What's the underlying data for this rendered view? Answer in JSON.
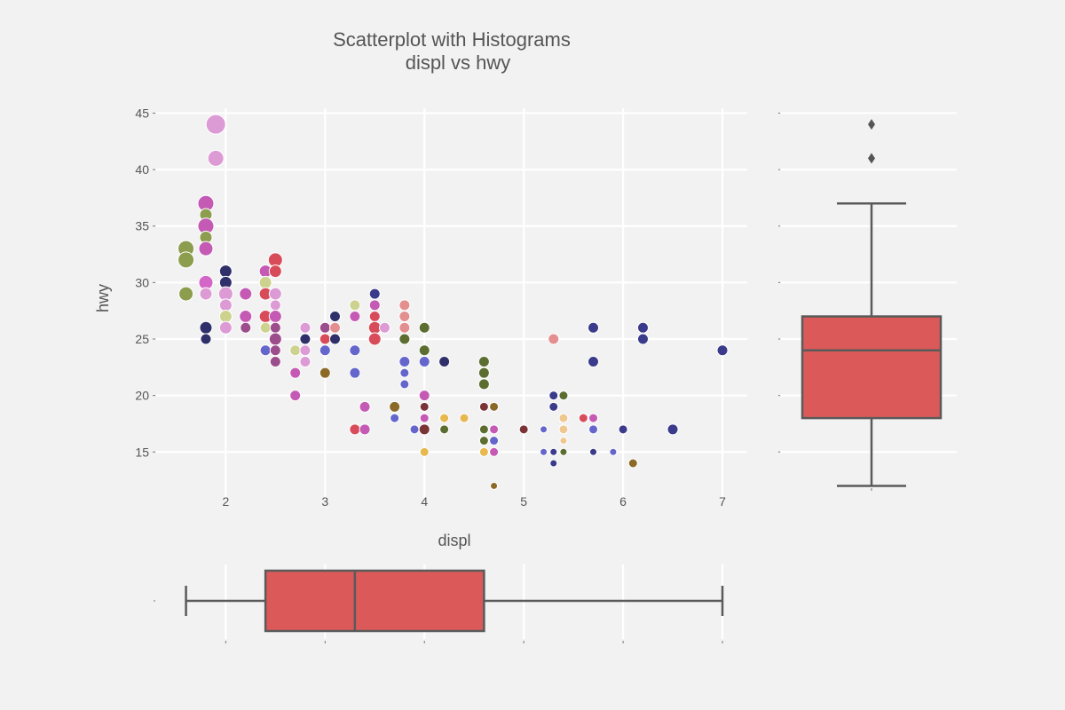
{
  "colors": {
    "background": "#f2f2f2",
    "grid": "#ffffff",
    "box_fill": "#db5a59",
    "box_edge": "#5a5a5a",
    "text": "#555555"
  },
  "chart_data": [
    {
      "type": "scatter",
      "title": "Scatterplot with Histograms",
      "subtitle": "displ vs hwy",
      "xlabel": "displ",
      "ylabel": "hwy",
      "xlim": [
        1.3,
        7.25
      ],
      "ylim": [
        10.7,
        45.9
      ],
      "xticks": [
        "2",
        "3",
        "4",
        "5",
        "6",
        "7"
      ],
      "yticks": [
        "15",
        "20",
        "25",
        "30",
        "35",
        "40",
        "45"
      ],
      "grid": true,
      "points": [
        {
          "x": 1.9,
          "y": 44,
          "s": 11,
          "c": "#dd9bd6"
        },
        {
          "x": 1.9,
          "y": 41,
          "s": 9,
          "c": "#dd9bd6"
        },
        {
          "x": 1.8,
          "y": 37,
          "s": 9,
          "c": "#c45ab4"
        },
        {
          "x": 1.8,
          "y": 36,
          "s": 7,
          "c": "#8c9d4e"
        },
        {
          "x": 1.8,
          "y": 35,
          "s": 9,
          "c": "#c45ab4"
        },
        {
          "x": 1.8,
          "y": 34,
          "s": 7,
          "c": "#8c9d4e"
        },
        {
          "x": 1.8,
          "y": 33,
          "s": 8,
          "c": "#c45ab4"
        },
        {
          "x": 1.6,
          "y": 33,
          "s": 9,
          "c": "#8c9d4e"
        },
        {
          "x": 1.6,
          "y": 32,
          "s": 9,
          "c": "#8c9d4e"
        },
        {
          "x": 1.6,
          "y": 29,
          "s": 8,
          "c": "#8c9d4e"
        },
        {
          "x": 1.8,
          "y": 30,
          "s": 8,
          "c": "#d366c6"
        },
        {
          "x": 1.8,
          "y": 29,
          "s": 7,
          "c": "#dd9bd6"
        },
        {
          "x": 1.8,
          "y": 26,
          "s": 7,
          "c": "#2f3069"
        },
        {
          "x": 1.8,
          "y": 25,
          "s": 6,
          "c": "#2f3069"
        },
        {
          "x": 2.0,
          "y": 31,
          "s": 7,
          "c": "#2f3069"
        },
        {
          "x": 2.0,
          "y": 30,
          "s": 7,
          "c": "#2f3069"
        },
        {
          "x": 2.0,
          "y": 29,
          "s": 8,
          "c": "#dd9bd6"
        },
        {
          "x": 2.0,
          "y": 28,
          "s": 7,
          "c": "#dd9bd6"
        },
        {
          "x": 2.0,
          "y": 27,
          "s": 7,
          "c": "#cdd38e"
        },
        {
          "x": 2.0,
          "y": 26,
          "s": 7,
          "c": "#dd9bd6"
        },
        {
          "x": 2.2,
          "y": 29,
          "s": 7,
          "c": "#c45ab4"
        },
        {
          "x": 2.2,
          "y": 27,
          "s": 7,
          "c": "#c45ab4"
        },
        {
          "x": 2.2,
          "y": 26,
          "s": 6,
          "c": "#9c4d8c"
        },
        {
          "x": 2.4,
          "y": 31,
          "s": 7,
          "c": "#c45ab4"
        },
        {
          "x": 2.4,
          "y": 30,
          "s": 7,
          "c": "#cdd38e"
        },
        {
          "x": 2.4,
          "y": 29,
          "s": 7,
          "c": "#d84c5a"
        },
        {
          "x": 2.4,
          "y": 27,
          "s": 7,
          "c": "#d84c5a"
        },
        {
          "x": 2.4,
          "y": 26,
          "s": 6,
          "c": "#cdd38e"
        },
        {
          "x": 2.4,
          "y": 24,
          "s": 6,
          "c": "#6466cc"
        },
        {
          "x": 2.5,
          "y": 32,
          "s": 8,
          "c": "#d84c5a"
        },
        {
          "x": 2.5,
          "y": 31,
          "s": 7,
          "c": "#d84c5a"
        },
        {
          "x": 2.5,
          "y": 29,
          "s": 7,
          "c": "#dd9bd6"
        },
        {
          "x": 2.5,
          "y": 28,
          "s": 6,
          "c": "#dd9bd6"
        },
        {
          "x": 2.5,
          "y": 27,
          "s": 7,
          "c": "#c45ab4"
        },
        {
          "x": 2.5,
          "y": 26,
          "s": 6,
          "c": "#9c4d8c"
        },
        {
          "x": 2.5,
          "y": 25,
          "s": 7,
          "c": "#9c4d8c"
        },
        {
          "x": 2.5,
          "y": 24,
          "s": 6,
          "c": "#9c4d8c"
        },
        {
          "x": 2.5,
          "y": 23,
          "s": 6,
          "c": "#9c4d8c"
        },
        {
          "x": 2.7,
          "y": 24,
          "s": 6,
          "c": "#cdd38e"
        },
        {
          "x": 2.7,
          "y": 22,
          "s": 6,
          "c": "#c45ab4"
        },
        {
          "x": 2.7,
          "y": 20,
          "s": 6,
          "c": "#c45ab4"
        },
        {
          "x": 2.8,
          "y": 26,
          "s": 6,
          "c": "#dd9bd6"
        },
        {
          "x": 2.8,
          "y": 25,
          "s": 6,
          "c": "#2f3069"
        },
        {
          "x": 2.8,
          "y": 24,
          "s": 6,
          "c": "#dd9bd6"
        },
        {
          "x": 2.8,
          "y": 23,
          "s": 6,
          "c": "#dd9bd6"
        },
        {
          "x": 3.0,
          "y": 26,
          "s": 6,
          "c": "#9c4d8c"
        },
        {
          "x": 3.0,
          "y": 25,
          "s": 6,
          "c": "#d84c5a"
        },
        {
          "x": 3.0,
          "y": 24,
          "s": 6,
          "c": "#6466cc"
        },
        {
          "x": 3.0,
          "y": 22,
          "s": 6,
          "c": "#8b6a28"
        },
        {
          "x": 3.1,
          "y": 27,
          "s": 6,
          "c": "#2f3069"
        },
        {
          "x": 3.1,
          "y": 26,
          "s": 6,
          "c": "#e48f8f"
        },
        {
          "x": 3.1,
          "y": 25,
          "s": 6,
          "c": "#2f3069"
        },
        {
          "x": 3.3,
          "y": 28,
          "s": 6,
          "c": "#cdd38e"
        },
        {
          "x": 3.3,
          "y": 27,
          "s": 6,
          "c": "#c45ab4"
        },
        {
          "x": 3.3,
          "y": 24,
          "s": 6,
          "c": "#6466cc"
        },
        {
          "x": 3.3,
          "y": 22,
          "s": 6,
          "c": "#6466cc"
        },
        {
          "x": 3.3,
          "y": 17,
          "s": 6,
          "c": "#d84c5a"
        },
        {
          "x": 3.4,
          "y": 19,
          "s": 6,
          "c": "#c45ab4"
        },
        {
          "x": 3.4,
          "y": 17,
          "s": 6,
          "c": "#c45ab4"
        },
        {
          "x": 3.5,
          "y": 29,
          "s": 6,
          "c": "#3b3b8c"
        },
        {
          "x": 3.5,
          "y": 28,
          "s": 6,
          "c": "#c45ab4"
        },
        {
          "x": 3.5,
          "y": 27,
          "s": 6,
          "c": "#d84c5a"
        },
        {
          "x": 3.5,
          "y": 26,
          "s": 7,
          "c": "#d84c5a"
        },
        {
          "x": 3.5,
          "y": 25,
          "s": 7,
          "c": "#d84c5a"
        },
        {
          "x": 3.6,
          "y": 26,
          "s": 6,
          "c": "#dd9bd6"
        },
        {
          "x": 3.7,
          "y": 19,
          "s": 6,
          "c": "#8b6a28"
        },
        {
          "x": 3.7,
          "y": 18,
          "s": 5,
          "c": "#6466cc"
        },
        {
          "x": 3.8,
          "y": 28,
          "s": 6,
          "c": "#e48f8f"
        },
        {
          "x": 3.8,
          "y": 27,
          "s": 6,
          "c": "#e48f8f"
        },
        {
          "x": 3.8,
          "y": 26,
          "s": 6,
          "c": "#e48f8f"
        },
        {
          "x": 3.8,
          "y": 25,
          "s": 6,
          "c": "#5b6d2f"
        },
        {
          "x": 3.8,
          "y": 23,
          "s": 6,
          "c": "#6466cc"
        },
        {
          "x": 3.8,
          "y": 22,
          "s": 5,
          "c": "#6466cc"
        },
        {
          "x": 3.8,
          "y": 21,
          "s": 5,
          "c": "#6466cc"
        },
        {
          "x": 3.9,
          "y": 17,
          "s": 5,
          "c": "#6466cc"
        },
        {
          "x": 4.0,
          "y": 26,
          "s": 6,
          "c": "#5b6d2f"
        },
        {
          "x": 4.0,
          "y": 24,
          "s": 6,
          "c": "#5b6d2f"
        },
        {
          "x": 4.0,
          "y": 23,
          "s": 6,
          "c": "#6466cc"
        },
        {
          "x": 4.0,
          "y": 20,
          "s": 6,
          "c": "#c45ab4"
        },
        {
          "x": 4.0,
          "y": 19,
          "s": 5,
          "c": "#7b3435"
        },
        {
          "x": 4.0,
          "y": 18,
          "s": 5,
          "c": "#c45ab4"
        },
        {
          "x": 4.0,
          "y": 17,
          "s": 6,
          "c": "#7b3435"
        },
        {
          "x": 4.0,
          "y": 15,
          "s": 5,
          "c": "#e7b84d"
        },
        {
          "x": 4.2,
          "y": 23,
          "s": 6,
          "c": "#2f3069"
        },
        {
          "x": 4.2,
          "y": 18,
          "s": 5,
          "c": "#e7b84d"
        },
        {
          "x": 4.2,
          "y": 17,
          "s": 5,
          "c": "#5b6d2f"
        },
        {
          "x": 4.4,
          "y": 18,
          "s": 5,
          "c": "#e7b84d"
        },
        {
          "x": 4.6,
          "y": 23,
          "s": 6,
          "c": "#5b6d2f"
        },
        {
          "x": 4.6,
          "y": 22,
          "s": 6,
          "c": "#5b6d2f"
        },
        {
          "x": 4.6,
          "y": 21,
          "s": 6,
          "c": "#5b6d2f"
        },
        {
          "x": 4.6,
          "y": 19,
          "s": 5,
          "c": "#7b3435"
        },
        {
          "x": 4.6,
          "y": 17,
          "s": 5,
          "c": "#5b6d2f"
        },
        {
          "x": 4.6,
          "y": 16,
          "s": 5,
          "c": "#5b6d2f"
        },
        {
          "x": 4.6,
          "y": 15,
          "s": 5,
          "c": "#e7b84d"
        },
        {
          "x": 4.7,
          "y": 19,
          "s": 5,
          "c": "#8b6a28"
        },
        {
          "x": 4.7,
          "y": 17,
          "s": 5,
          "c": "#c45ab4"
        },
        {
          "x": 4.7,
          "y": 16,
          "s": 5,
          "c": "#6466cc"
        },
        {
          "x": 4.7,
          "y": 15,
          "s": 5,
          "c": "#c45ab4"
        },
        {
          "x": 4.7,
          "y": 12,
          "s": 4,
          "c": "#8b6a28"
        },
        {
          "x": 5.0,
          "y": 17,
          "s": 5,
          "c": "#7b3435"
        },
        {
          "x": 5.2,
          "y": 17,
          "s": 4,
          "c": "#6466cc"
        },
        {
          "x": 5.2,
          "y": 15,
          "s": 4,
          "c": "#6466cc"
        },
        {
          "x": 5.3,
          "y": 25,
          "s": 6,
          "c": "#e48f8f"
        },
        {
          "x": 5.3,
          "y": 20,
          "s": 5,
          "c": "#3b3b8c"
        },
        {
          "x": 5.3,
          "y": 19,
          "s": 5,
          "c": "#3b3b8c"
        },
        {
          "x": 5.3,
          "y": 15,
          "s": 4,
          "c": "#3b3b8c"
        },
        {
          "x": 5.3,
          "y": 14,
          "s": 4,
          "c": "#3b3b8c"
        },
        {
          "x": 5.4,
          "y": 20,
          "s": 5,
          "c": "#5b6d2f"
        },
        {
          "x": 5.4,
          "y": 18,
          "s": 5,
          "c": "#efc88f"
        },
        {
          "x": 5.4,
          "y": 17,
          "s": 5,
          "c": "#efc88f"
        },
        {
          "x": 5.4,
          "y": 16,
          "s": 4,
          "c": "#efc88f"
        },
        {
          "x": 5.4,
          "y": 15,
          "s": 4,
          "c": "#5b6d2f"
        },
        {
          "x": 5.6,
          "y": 18,
          "s": 5,
          "c": "#d84c5a"
        },
        {
          "x": 5.7,
          "y": 26,
          "s": 6,
          "c": "#3b3b8c"
        },
        {
          "x": 5.7,
          "y": 23,
          "s": 6,
          "c": "#3b3b8c"
        },
        {
          "x": 5.7,
          "y": 18,
          "s": 5,
          "c": "#c45ab4"
        },
        {
          "x": 5.7,
          "y": 17,
          "s": 5,
          "c": "#6466cc"
        },
        {
          "x": 5.7,
          "y": 15,
          "s": 4,
          "c": "#3b3b8c"
        },
        {
          "x": 5.9,
          "y": 15,
          "s": 4,
          "c": "#6466cc"
        },
        {
          "x": 6.0,
          "y": 17,
          "s": 5,
          "c": "#3b3b8c"
        },
        {
          "x": 6.1,
          "y": 14,
          "s": 5,
          "c": "#8b6a28"
        },
        {
          "x": 6.2,
          "y": 26,
          "s": 6,
          "c": "#3b3b8c"
        },
        {
          "x": 6.2,
          "y": 25,
          "s": 6,
          "c": "#3b3b8c"
        },
        {
          "x": 6.5,
          "y": 17,
          "s": 6,
          "c": "#3b3b8c"
        },
        {
          "x": 7.0,
          "y": 24,
          "s": 6,
          "c": "#3b3b8c"
        }
      ]
    },
    {
      "type": "box",
      "variable": "hwy",
      "orientation": "vertical",
      "whisker_low": 12,
      "q1": 18,
      "median": 24,
      "q3": 27,
      "whisker_high": 37,
      "outliers": [
        41,
        44
      ]
    },
    {
      "type": "box",
      "variable": "displ",
      "orientation": "horizontal",
      "whisker_low": 1.6,
      "q1": 2.4,
      "median": 3.3,
      "q3": 4.6,
      "whisker_high": 7.0,
      "outliers": []
    }
  ]
}
